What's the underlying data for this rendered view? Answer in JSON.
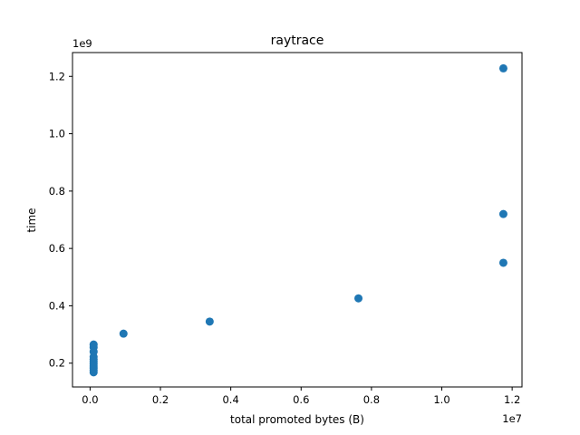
{
  "chart_data": {
    "type": "scatter",
    "title": "raytrace",
    "xlabel": "total promoted bytes (B)",
    "ylabel": "time",
    "x_offset_label": "1e7",
    "y_offset_label": "1e9",
    "xlim": [
      -0.05,
      1.228
    ],
    "ylim": [
      0.117,
      1.283
    ],
    "x_ticks": [
      0.0,
      0.2,
      0.4,
      0.6,
      0.8,
      1.0,
      1.2
    ],
    "x_tick_labels": [
      "0.0",
      "0.2",
      "0.4",
      "0.6",
      "0.8",
      "1.0",
      "1.2"
    ],
    "y_ticks": [
      0.2,
      0.4,
      0.6,
      0.8,
      1.0,
      1.2
    ],
    "y_tick_labels": [
      "0.2",
      "0.4",
      "0.6",
      "0.8",
      "1.0",
      "1.2"
    ],
    "grid": false,
    "marker_color": "#1f77b4",
    "points": [
      {
        "x": 0.01,
        "y": 0.168
      },
      {
        "x": 0.01,
        "y": 0.175
      },
      {
        "x": 0.01,
        "y": 0.183
      },
      {
        "x": 0.01,
        "y": 0.19
      },
      {
        "x": 0.01,
        "y": 0.197
      },
      {
        "x": 0.01,
        "y": 0.205
      },
      {
        "x": 0.01,
        "y": 0.213
      },
      {
        "x": 0.01,
        "y": 0.222
      },
      {
        "x": 0.01,
        "y": 0.24
      },
      {
        "x": 0.01,
        "y": 0.255
      },
      {
        "x": 0.01,
        "y": 0.265
      },
      {
        "x": 0.095,
        "y": 0.303
      },
      {
        "x": 0.34,
        "y": 0.345
      },
      {
        "x": 0.763,
        "y": 0.426
      },
      {
        "x": 1.175,
        "y": 0.55
      },
      {
        "x": 1.175,
        "y": 0.72
      },
      {
        "x": 1.175,
        "y": 1.228
      }
    ]
  }
}
